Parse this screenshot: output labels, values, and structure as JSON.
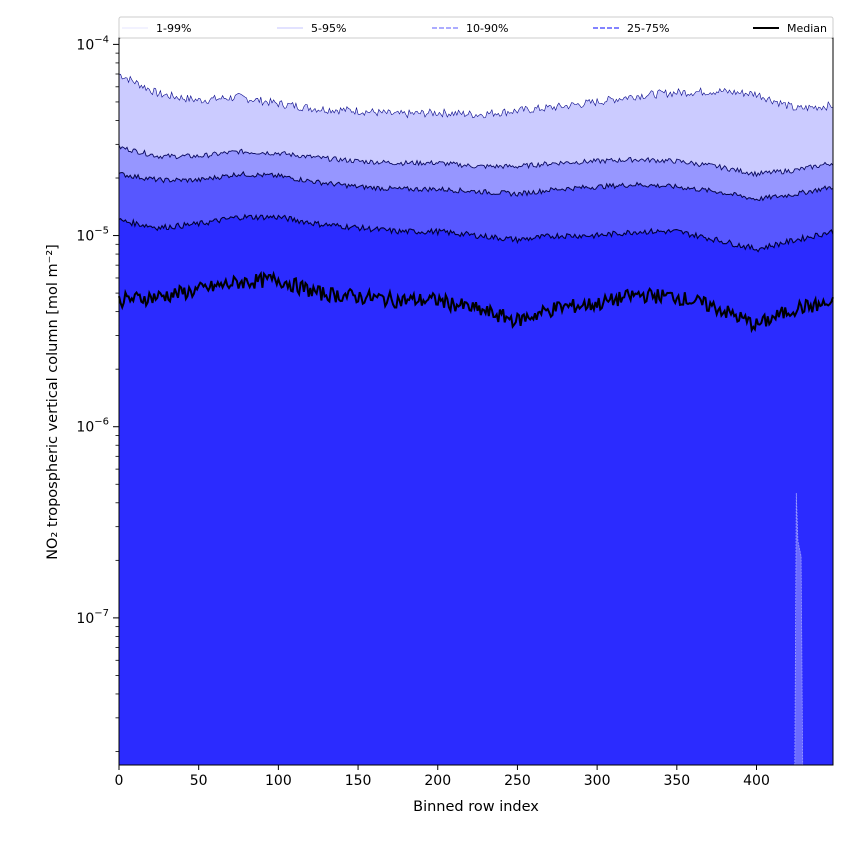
{
  "chart_data": {
    "type": "area",
    "xlabel": "Binned row index",
    "ylabel": "NO₂ tropospheric vertical column [mol m⁻²]",
    "y_scale": "log",
    "xlim": [
      0,
      448
    ],
    "ylim": [
      1.7e-08,
      0.000108
    ],
    "x_ticks": [
      0,
      50,
      100,
      150,
      200,
      250,
      300,
      350,
      400
    ],
    "y_ticks": [
      {
        "value": 1e-07,
        "base": "10",
        "exp": "−7"
      },
      {
        "value": 1e-06,
        "base": "10",
        "exp": "−6"
      },
      {
        "value": 1e-05,
        "base": "10",
        "exp": "−5"
      },
      {
        "value": 0.0001,
        "base": "10",
        "exp": "−4"
      }
    ],
    "legend_placement": "top",
    "colors": {
      "band_1_99": "#2b2bff",
      "band_5_95": "#5757ff",
      "band_10_90": "#9696ff",
      "band_25_75": "#cbcbff",
      "median": "#000000"
    },
    "legend": [
      {
        "label": "1-99%",
        "style": "thin",
        "color": "#dcdcff"
      },
      {
        "label": "5-95%",
        "style": "thin",
        "color": "#b0b0ff"
      },
      {
        "label": "10-90%",
        "style": "dashed",
        "color": "#9090ff"
      },
      {
        "label": "25-75%",
        "style": "dashed",
        "color": "#5a5aff"
      },
      {
        "label": "Median",
        "style": "solid",
        "color": "#000000"
      }
    ],
    "anchor_x": [
      0,
      25,
      50,
      75,
      100,
      125,
      150,
      175,
      200,
      225,
      250,
      275,
      300,
      325,
      350,
      375,
      400,
      425,
      448
    ],
    "series": [
      {
        "name": "99th percentile",
        "values": [
          7e-05,
          5.5e-05,
          5.1e-05,
          5.3e-05,
          4.9e-05,
          4.6e-05,
          4.5e-05,
          4.3e-05,
          4.4e-05,
          4.3e-05,
          4.5e-05,
          4.7e-05,
          5e-05,
          5.4e-05,
          5.6e-05,
          5.7e-05,
          5.5e-05,
          4.6e-05,
          4.8e-05
        ]
      },
      {
        "name": "95th percentile",
        "values": [
          2.9e-05,
          2.6e-05,
          2.6e-05,
          2.75e-05,
          2.7e-05,
          2.55e-05,
          2.45e-05,
          2.4e-05,
          2.4e-05,
          2.3e-05,
          2.3e-05,
          2.4e-05,
          2.45e-05,
          2.5e-05,
          2.45e-05,
          2.3e-05,
          2.1e-05,
          2.2e-05,
          2.4e-05
        ]
      },
      {
        "name": "90th percentile",
        "values": [
          2.1e-05,
          1.95e-05,
          1.95e-05,
          2.1e-05,
          2.05e-05,
          1.9e-05,
          1.8e-05,
          1.75e-05,
          1.75e-05,
          1.7e-05,
          1.65e-05,
          1.75e-05,
          1.8e-05,
          1.85e-05,
          1.8e-05,
          1.7e-05,
          1.55e-05,
          1.65e-05,
          1.8e-05
        ]
      },
      {
        "name": "75th percentile",
        "values": [
          1.2e-05,
          1.1e-05,
          1.15e-05,
          1.25e-05,
          1.25e-05,
          1.15e-05,
          1.1e-05,
          1.05e-05,
          1.05e-05,
          1e-05,
          9.5e-06,
          1e-05,
          1e-05,
          1.05e-05,
          1.05e-05,
          9.5e-06,
          8.5e-06,
          9.5e-06,
          1.05e-05
        ]
      },
      {
        "name": "Median",
        "values": [
          4.6e-06,
          4.8e-06,
          5.2e-06,
          5.7e-06,
          5.9e-06,
          5e-06,
          4.8e-06,
          4.6e-06,
          4.6e-06,
          4.1e-06,
          3.6e-06,
          4.2e-06,
          4.4e-06,
          4.9e-06,
          4.8e-06,
          4.2e-06,
          3.4e-06,
          4.2e-06,
          4.4e-06
        ]
      },
      {
        "name": "1st percentile",
        "value": 1.7e-08
      },
      {
        "name": "spike",
        "x": [
          425,
          428
        ],
        "values": [
          4.5e-07,
          2.1e-07
        ]
      }
    ]
  }
}
